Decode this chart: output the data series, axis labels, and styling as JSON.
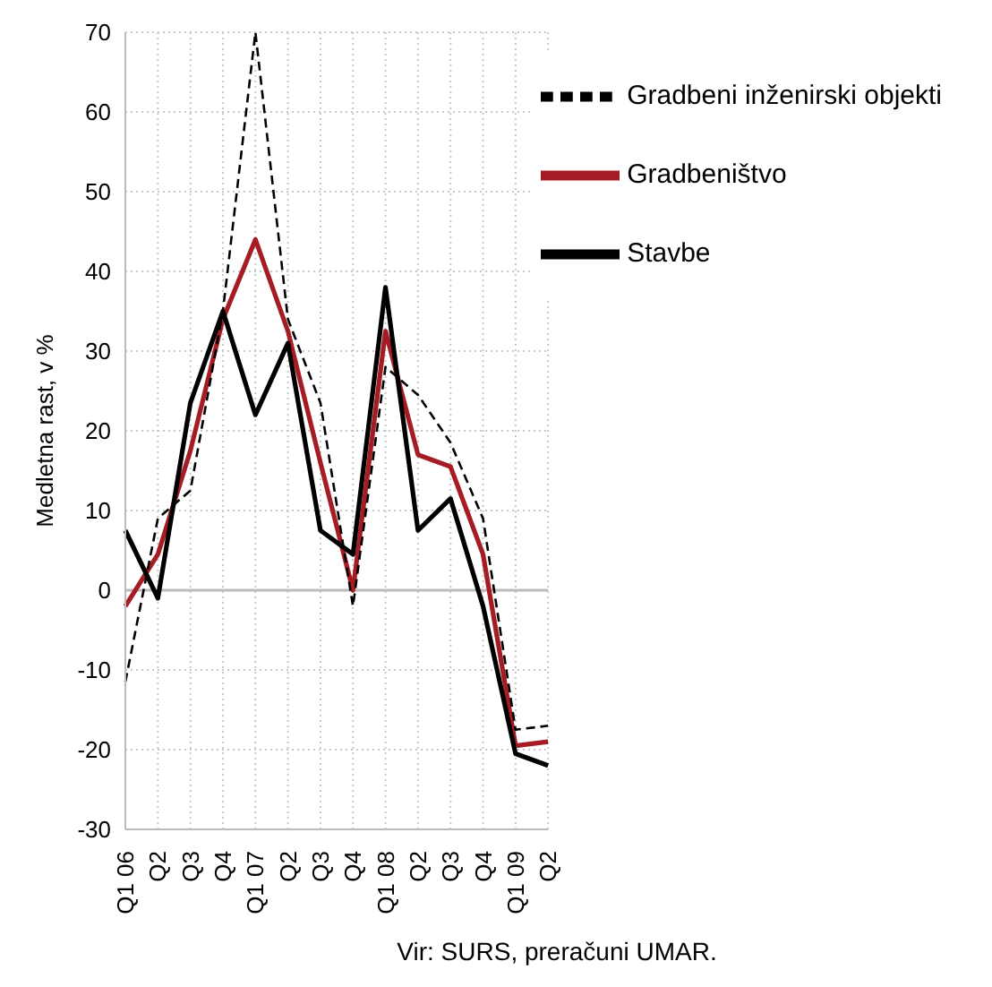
{
  "chart_data": {
    "type": "line",
    "ylabel": "Medletna rast, v %",
    "annotations": [
      "Vir: SURS, preračuni UMAR."
    ],
    "categories": [
      "Q1 06",
      "Q2",
      "Q3",
      "Q4",
      "Q1 07",
      "Q2",
      "Q3",
      "Q4",
      "Q1 08",
      "Q2",
      "Q3",
      "Q4",
      "Q1 09",
      "Q2"
    ],
    "series": [
      {
        "name": "Gradbeništvo",
        "color": "#a51c24",
        "line_style": "solid",
        "values": [
          -2,
          4.5,
          17.5,
          34,
          44,
          32.5,
          16,
          0,
          32.5,
          17,
          15.5,
          4.5,
          -19.5,
          -19
        ]
      },
      {
        "name": "Gradbeni inženirski objekti",
        "color": "#000000",
        "line_style": "dashed",
        "values": [
          -11.5,
          9,
          12.5,
          35,
          70,
          34,
          23.5,
          -2,
          28,
          24.5,
          18.5,
          9,
          -17.5,
          -17
        ]
      },
      {
        "name": "Stavbe",
        "color": "#000000",
        "line_style": "solid",
        "values": [
          7.5,
          -1,
          23.5,
          35,
          22,
          31,
          7.5,
          4.5,
          38,
          7.5,
          11.5,
          -2,
          -20.5,
          -22
        ]
      }
    ],
    "ylim": [
      -30,
      70
    ],
    "yticks": [
      -30,
      -20,
      -10,
      0,
      10,
      20,
      30,
      40,
      50,
      60,
      70
    ],
    "grid": true,
    "legend": "top right",
    "marker": "none"
  }
}
